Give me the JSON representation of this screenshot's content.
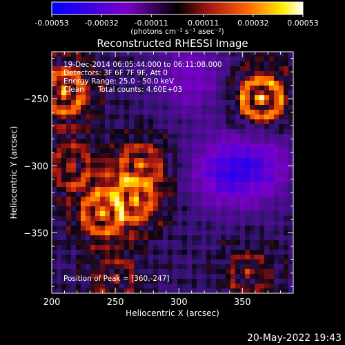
{
  "colorbar": {
    "tick_labels": [
      "-0.00053",
      "-0.00032",
      "-0.00011",
      "0.00011",
      "0.00032",
      "0.00053"
    ],
    "tick_values": [
      -0.00053,
      -0.00032,
      -0.00011,
      0.00011,
      0.00032,
      0.00053
    ],
    "range": [
      -0.00053,
      0.00053
    ],
    "units_label": "(photons cm⁻² s⁻¹ asec⁻²)",
    "colors": [
      "#0000ff",
      "#7a00c8",
      "#000000",
      "#a01414",
      "#ff6600",
      "#ffee00",
      "#ffffff"
    ]
  },
  "title": "Reconstructed RHESSI Image",
  "info": {
    "time_line": "19-Dec-2014 06:05:44.000 to 06:11:08.000",
    "detectors_line": "Detectors: 3F 6F 7F 9F, Att 0",
    "energy_line": "Energy Range: 25.0 - 50.0 keV",
    "clean_label": "Clean",
    "counts_label": "Total counts: 4.60E+03",
    "peak_line": "Position of Peak = [360,-247]"
  },
  "chart_data": {
    "type": "heatmap",
    "title": "Reconstructed RHESSI Image",
    "xlabel": "Heliocentric X (arcsec)",
    "ylabel": "Heliocentric Y (arcsec)",
    "xlim": [
      200,
      390
    ],
    "ylim": [
      -395,
      -215
    ],
    "x_ticks": [
      200,
      250,
      300,
      350
    ],
    "y_ticks": [
      -250,
      -300,
      -350
    ],
    "x_tick_labels": [
      "200",
      "250",
      "300",
      "350"
    ],
    "y_tick_labels": [
      "−250",
      "−300",
      "−350"
    ],
    "peak_position": [
      360,
      -247
    ],
    "bright_regions": [
      {
        "x": 365,
        "y": -250,
        "level": 0.00053
      },
      {
        "x": 210,
        "y": -245,
        "level": 0.00045
      },
      {
        "x": 240,
        "y": -335,
        "level": 0.0004
      },
      {
        "x": 265,
        "y": -325,
        "level": 0.00035
      },
      {
        "x": 270,
        "y": -300,
        "level": 0.0003
      },
      {
        "x": 215,
        "y": -300,
        "level": 0.00025
      },
      {
        "x": 355,
        "y": -380,
        "level": 0.0002
      },
      {
        "x": 250,
        "y": -385,
        "level": 0.0002
      }
    ],
    "dark_regions": [
      {
        "x": 335,
        "y": -305,
        "level": -0.0003
      },
      {
        "x": 365,
        "y": -300,
        "level": -0.00025
      },
      {
        "x": 310,
        "y": -235,
        "level": -0.0002
      }
    ]
  },
  "footer": {
    "timestamp": "20-May-2022 19:43"
  }
}
